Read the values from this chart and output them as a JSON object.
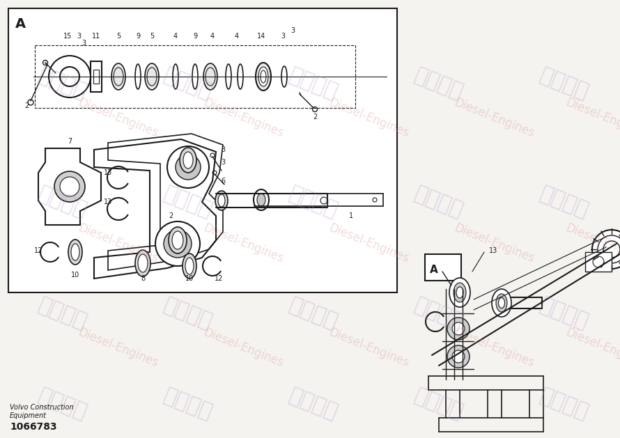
{
  "bg_color": "#f5f3ef",
  "line_color": "#1a1a1a",
  "white": "#ffffff",
  "bottom_left_line1": "Volvo Construction",
  "bottom_left_line2": "Equipment",
  "part_number": "1066783",
  "wm_purple_text": "紫发动力",
  "wm_red_text": "Diesel-Engines",
  "fig_w": 8.9,
  "fig_h": 6.29,
  "dpi": 100
}
